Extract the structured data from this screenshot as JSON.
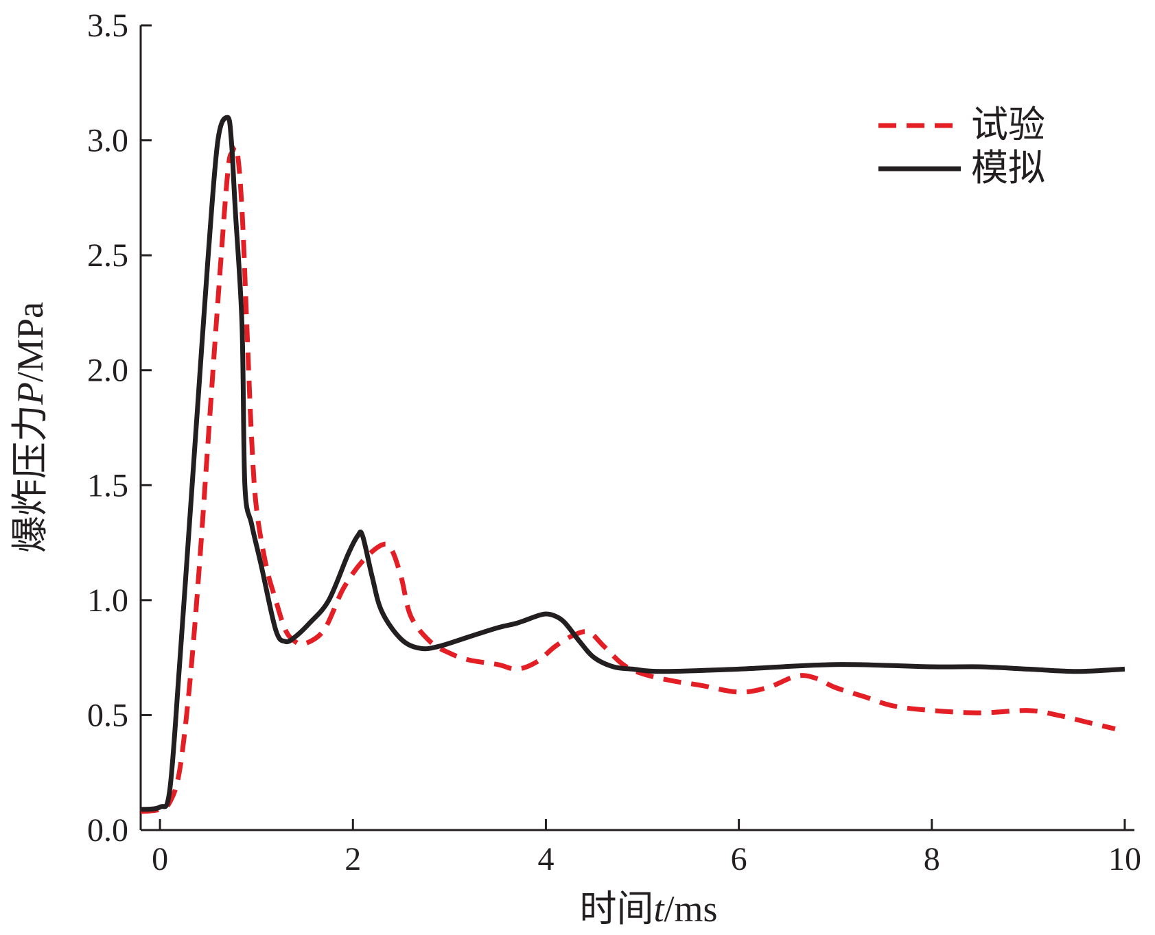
{
  "chart_data": {
    "type": "line",
    "xlabel": {
      "prefix": "时间",
      "var": "t",
      "unit": "/ms"
    },
    "ylabel": {
      "prefix": "爆炸压力",
      "var": "P",
      "unit": "/MPa"
    },
    "xlim": [
      -0.2,
      10.1
    ],
    "ylim": [
      0,
      3.5
    ],
    "x_ticks": [
      0,
      2,
      4,
      6,
      8,
      10
    ],
    "x_tick_labels": [
      "0",
      "2",
      "4",
      "6",
      "8",
      "10"
    ],
    "y_ticks": [
      0,
      0.5,
      1.0,
      1.5,
      2.0,
      2.5,
      3.0,
      3.5
    ],
    "y_tick_labels": [
      "0.0",
      "0.5",
      "1.0",
      "1.5",
      "2.0",
      "2.5",
      "3.0",
      "3.5"
    ],
    "grid": false,
    "legend_position": "top-right",
    "series": [
      {
        "name": "试验",
        "color": "#e31e24",
        "style": "dashed",
        "x": [
          -0.2,
          0.0,
          0.1,
          0.2,
          0.3,
          0.4,
          0.5,
          0.6,
          0.7,
          0.75,
          0.8,
          0.85,
          0.9,
          0.95,
          1.0,
          1.1,
          1.2,
          1.3,
          1.4,
          1.5,
          1.7,
          1.9,
          2.1,
          2.3,
          2.4,
          2.5,
          2.6,
          2.8,
          3.0,
          3.2,
          3.5,
          3.7,
          3.9,
          4.1,
          4.3,
          4.45,
          4.6,
          4.8,
          5.0,
          5.3,
          5.6,
          6.0,
          6.3,
          6.6,
          6.8,
          7.0,
          7.3,
          7.6,
          8.0,
          8.5,
          9.0,
          9.3,
          9.6,
          9.9
        ],
        "y": [
          0.08,
          0.09,
          0.12,
          0.25,
          0.6,
          1.1,
          1.7,
          2.3,
          2.85,
          2.95,
          2.95,
          2.7,
          2.2,
          1.7,
          1.4,
          1.15,
          1.0,
          0.87,
          0.82,
          0.81,
          0.87,
          1.05,
          1.17,
          1.24,
          1.22,
          1.1,
          0.93,
          0.82,
          0.77,
          0.74,
          0.72,
          0.7,
          0.73,
          0.8,
          0.85,
          0.86,
          0.8,
          0.72,
          0.68,
          0.65,
          0.63,
          0.6,
          0.62,
          0.67,
          0.66,
          0.62,
          0.58,
          0.54,
          0.52,
          0.51,
          0.52,
          0.5,
          0.47,
          0.44
        ]
      },
      {
        "name": "模拟",
        "color": "#231f20",
        "style": "solid",
        "x": [
          -0.2,
          0.0,
          0.1,
          0.2,
          0.3,
          0.4,
          0.5,
          0.6,
          0.7,
          0.74,
          0.78,
          0.85,
          0.88,
          0.95,
          1.05,
          1.2,
          1.3,
          1.4,
          1.55,
          1.75,
          1.95,
          2.05,
          2.1,
          2.2,
          2.3,
          2.5,
          2.7,
          2.9,
          3.2,
          3.5,
          3.7,
          3.9,
          4.0,
          4.1,
          4.2,
          4.35,
          4.5,
          4.7,
          4.9,
          5.2,
          6.0,
          7.0,
          8.0,
          8.5,
          9.0,
          9.5,
          10.0
        ],
        "y": [
          0.09,
          0.1,
          0.17,
          0.7,
          1.3,
          1.9,
          2.5,
          3.0,
          3.1,
          3.0,
          2.7,
          2.2,
          1.5,
          1.33,
          1.15,
          0.87,
          0.82,
          0.84,
          0.9,
          1.0,
          1.2,
          1.28,
          1.28,
          1.1,
          0.95,
          0.83,
          0.79,
          0.8,
          0.84,
          0.88,
          0.9,
          0.93,
          0.94,
          0.93,
          0.9,
          0.82,
          0.75,
          0.71,
          0.7,
          0.69,
          0.7,
          0.72,
          0.71,
          0.71,
          0.7,
          0.69,
          0.7
        ]
      }
    ]
  }
}
